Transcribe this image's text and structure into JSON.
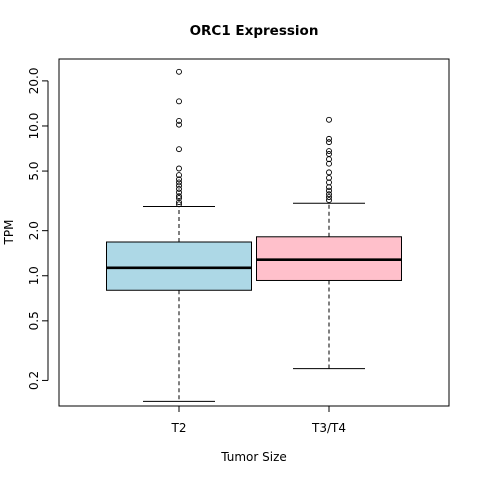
{
  "chart_data": {
    "type": "boxplot",
    "title": "ORC1 Expression",
    "xlabel": "Tumor Size",
    "ylabel": "TPM",
    "y_scale": "log",
    "ylim": [
      0.135,
      28
    ],
    "y_ticks": [
      0.2,
      0.5,
      1.0,
      2.0,
      5.0,
      10.0,
      20.0
    ],
    "y_tick_labels": [
      "0.2",
      "0.5",
      "1.0",
      "2.0",
      "5.0",
      "10.0",
      "20.0"
    ],
    "grid": false,
    "categories": [
      "T2",
      "T3/T4"
    ],
    "boxes": [
      {
        "category": "T2",
        "color": "#add8e6",
        "whisker_low": 0.145,
        "q1": 0.8,
        "median": 1.13,
        "q3": 1.68,
        "whisker_high": 2.9,
        "outliers": [
          3.0,
          3.1,
          3.3,
          3.4,
          3.6,
          3.8,
          4.0,
          4.2,
          4.4,
          4.7,
          5.2,
          7.0,
          10.2,
          10.8,
          14.6,
          23.0
        ]
      },
      {
        "category": "T3/T4",
        "color": "#ffc0cb",
        "whisker_low": 0.24,
        "q1": 0.93,
        "median": 1.28,
        "q3": 1.82,
        "whisker_high": 3.05,
        "outliers": [
          3.2,
          3.35,
          3.5,
          3.7,
          3.9,
          4.2,
          4.5,
          4.9,
          5.6,
          6.0,
          6.5,
          6.8,
          7.8,
          8.2,
          11.0
        ]
      }
    ]
  }
}
